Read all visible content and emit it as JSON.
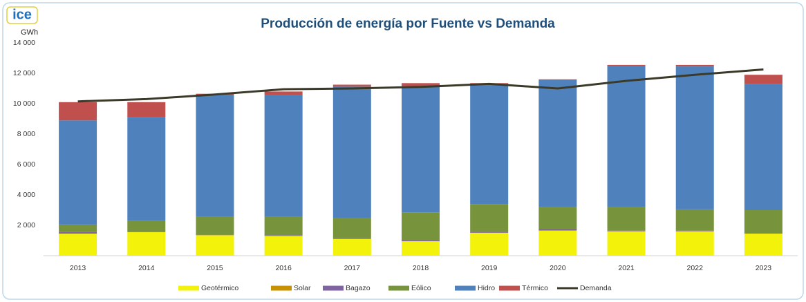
{
  "logo": "ice",
  "chart_data": {
    "type": "bar",
    "stacked": true,
    "title": "Producción de energía por Fuente vs Demanda",
    "y_axis_label": "GWh",
    "categories": [
      "2013",
      "2014",
      "2015",
      "2016",
      "2017",
      "2018",
      "2019",
      "2020",
      "2021",
      "2022",
      "2023"
    ],
    "series": [
      {
        "name": "Geotérmico",
        "color": "#f2f20a",
        "values": [
          1450,
          1550,
          1350,
          1300,
          1100,
          950,
          1500,
          1650,
          1600,
          1600,
          1450
        ]
      },
      {
        "name": "Solar",
        "color": "#c79100",
        "values": [
          0,
          0,
          0,
          0,
          0,
          0,
          10,
          10,
          10,
          10,
          10
        ]
      },
      {
        "name": "Bagazo",
        "color": "#8064a2",
        "values": [
          100,
          50,
          50,
          50,
          50,
          50,
          90,
          90,
          40,
          40,
          40
        ]
      },
      {
        "name": "Eólico",
        "color": "#77933c",
        "values": [
          500,
          700,
          1150,
          1200,
          1350,
          1850,
          1800,
          1450,
          1550,
          1400,
          1500
        ]
      },
      {
        "name": "Hidro",
        "color": "#4f81bd",
        "values": [
          6850,
          6800,
          8000,
          8000,
          8650,
          8300,
          7900,
          8350,
          9300,
          9400,
          8300
        ]
      },
      {
        "name": "Térmico",
        "color": "#c0504d",
        "values": [
          1200,
          1000,
          100,
          250,
          100,
          200,
          50,
          50,
          50,
          100,
          600
        ]
      },
      {
        "name": "Demanda",
        "color": "#3b3a28",
        "type": "line",
        "values": [
          10150,
          10300,
          10600,
          10950,
          11000,
          11100,
          11300,
          11000,
          11500,
          11900,
          12250
        ]
      }
    ],
    "ylim": [
      0,
      14000
    ],
    "yticks": [
      {
        "value": 2000,
        "label": "2 000"
      },
      {
        "value": 4000,
        "label": "4 000"
      },
      {
        "value": 6000,
        "label": "6 000"
      },
      {
        "value": 8000,
        "label": "8 000"
      },
      {
        "value": 10000,
        "label": "10 000"
      },
      {
        "value": 12000,
        "label": "12 000"
      },
      {
        "value": 14000,
        "label": "14 000"
      }
    ],
    "grid": false,
    "legend": "bottom"
  }
}
